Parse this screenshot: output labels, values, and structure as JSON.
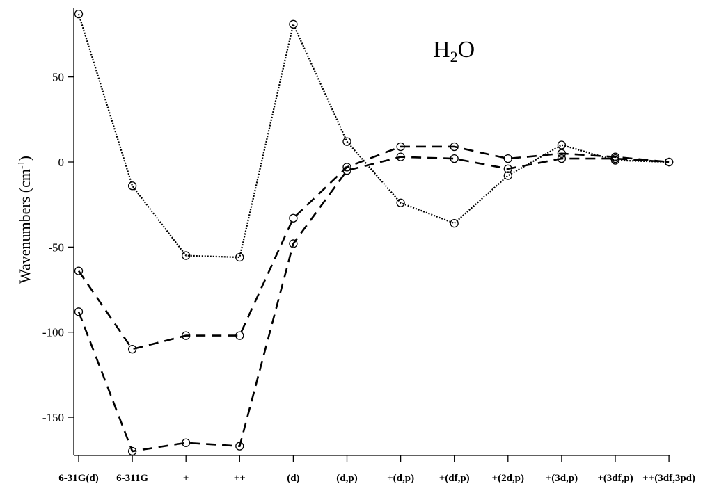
{
  "chart_data": {
    "type": "line",
    "title": "",
    "annotation": {
      "base": "H",
      "sub": "2",
      "rest": "O"
    },
    "ylabel": {
      "main": "Wavenumbers (cm",
      "sup": "-1",
      "close": ")"
    },
    "xlabel": "",
    "categories": [
      "6-31G(d)",
      "6-311G",
      "+",
      "++",
      "(d)",
      "(d,p)",
      "+(d,p)",
      "+(df,p)",
      "+(2d,p)",
      "+(3d,p)",
      "+(3df,p)",
      "++(3df,3pd)"
    ],
    "ylim": [
      -172,
      88
    ],
    "yticks": [
      50,
      0,
      -50,
      -100,
      -150
    ],
    "reference_lines": [
      10,
      -10
    ],
    "grid": false,
    "legend": "none",
    "series": [
      {
        "style": "dotted",
        "values": [
          87,
          -14,
          -55,
          -56,
          81,
          12,
          -24,
          -36,
          -8,
          10,
          1,
          0
        ]
      },
      {
        "style": "dashed",
        "values": [
          -64,
          -110,
          -102,
          -102,
          -33,
          -3,
          9,
          9,
          2,
          5,
          3,
          0
        ]
      },
      {
        "style": "dashed",
        "values": [
          -88,
          -170,
          -165,
          -167,
          -48,
          -5,
          3,
          2,
          -4,
          2,
          2,
          0
        ]
      }
    ],
    "colors": {
      "line": "#000000",
      "marker": "#000000",
      "background": "#ffffff"
    }
  }
}
